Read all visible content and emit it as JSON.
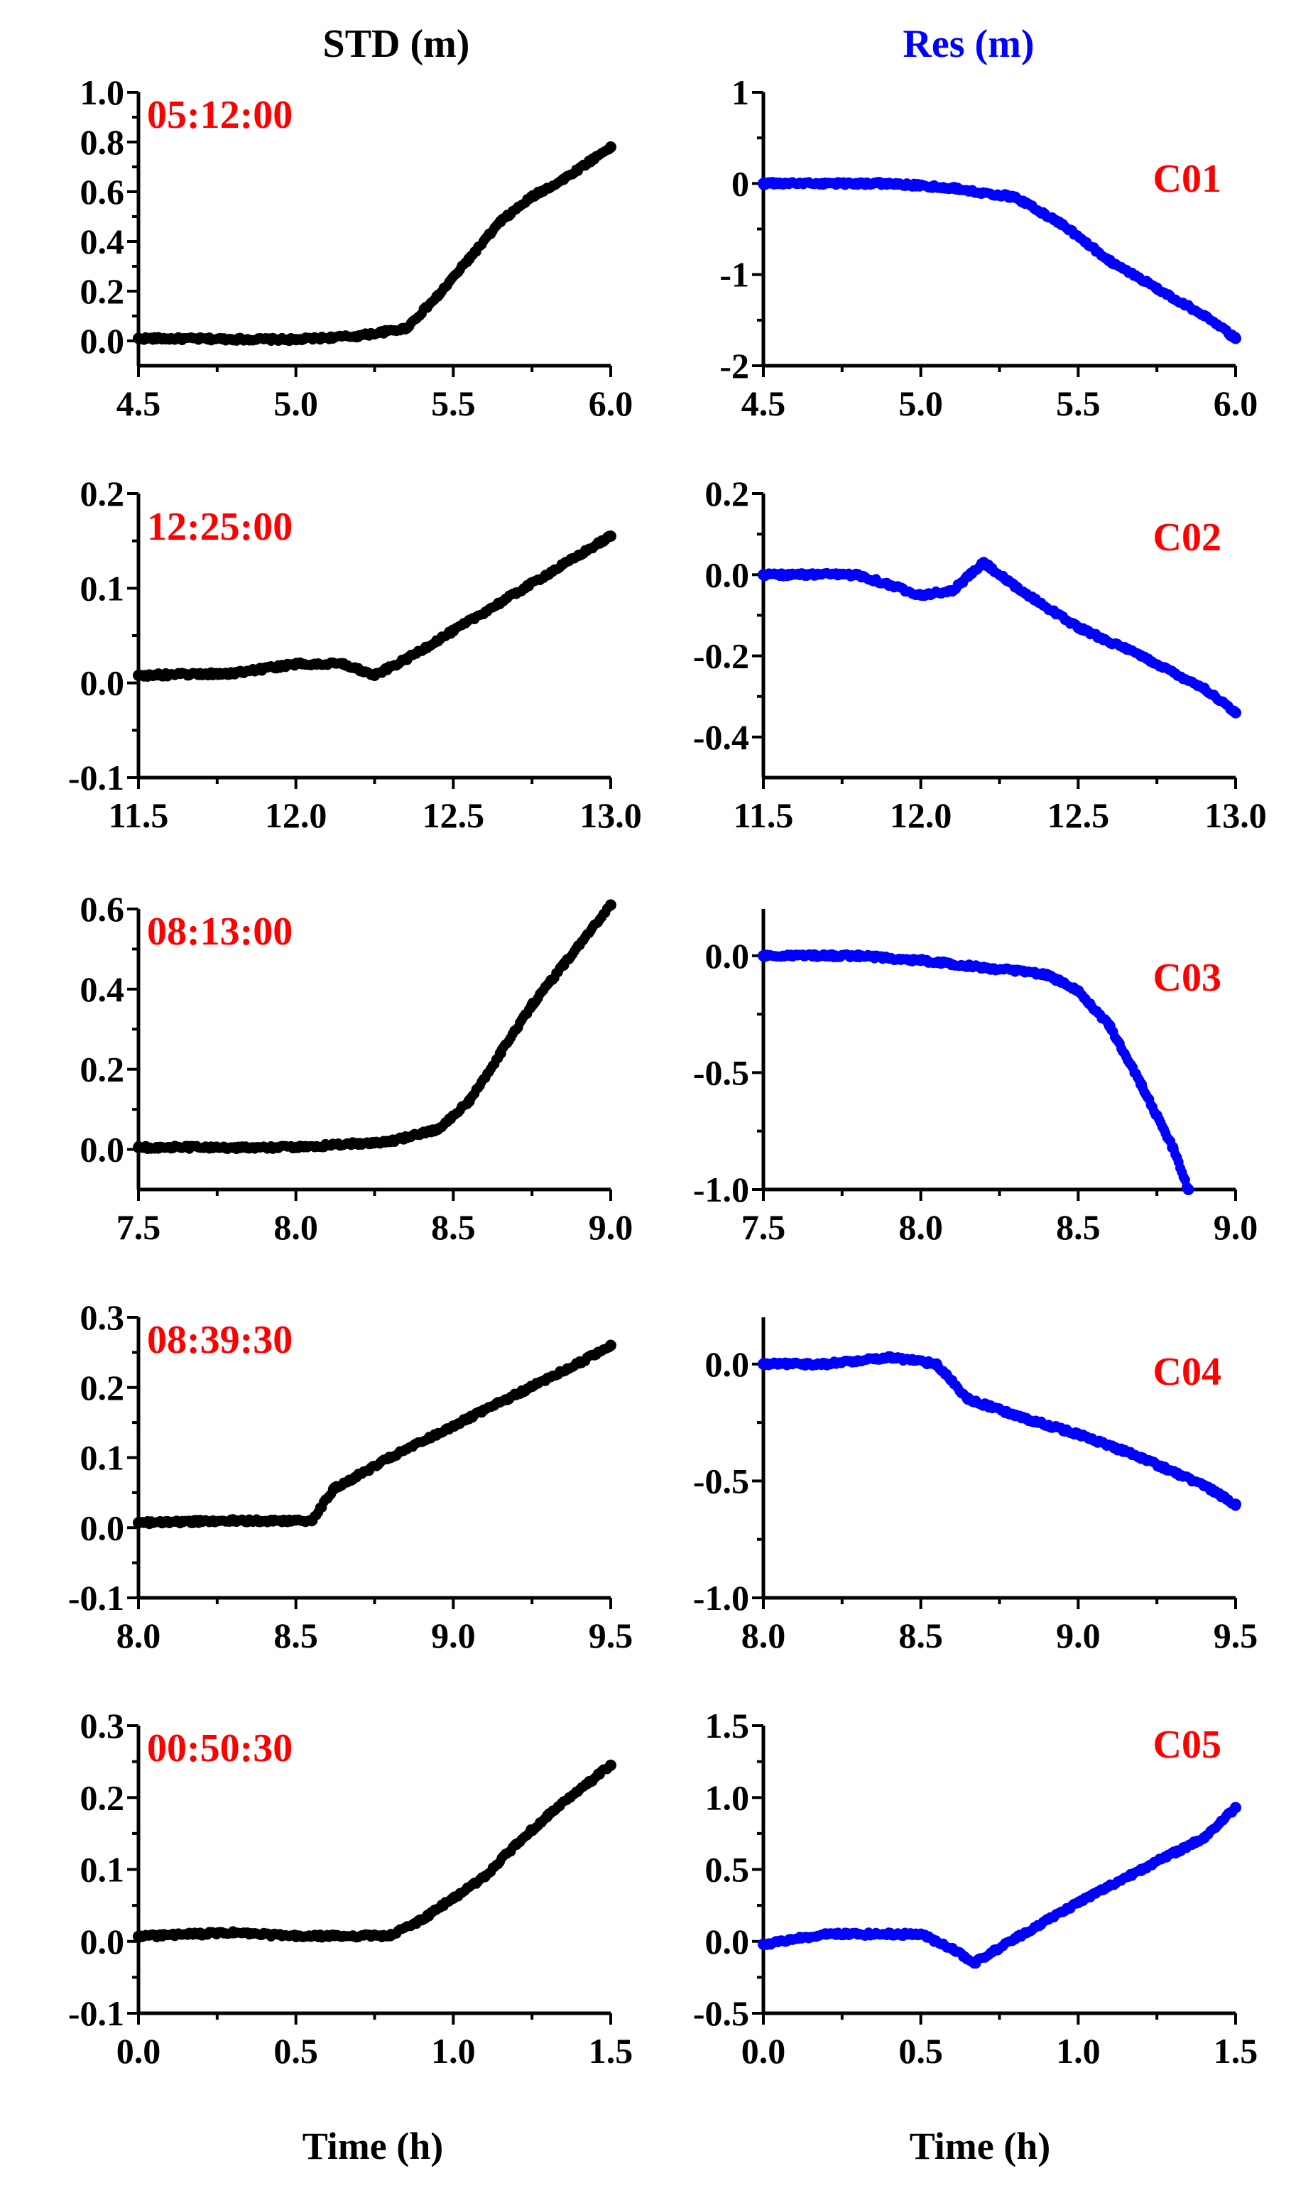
{
  "header": {
    "left_title": "STD (m)",
    "right_title": "Res (m)"
  },
  "footer": {
    "left_xlabel": "Time (h)",
    "right_xlabel": "Time (h)"
  },
  "colors": {
    "std_series": "#000000",
    "res_series": "#0000ff",
    "annotation": "#ff0000",
    "left_title": "#000000",
    "right_title": "#0000ff"
  },
  "chart_data": [
    {
      "type": "scatter",
      "column": "STD",
      "row": 1,
      "annotation": "05:12:00",
      "ylabel": "STD (m)",
      "xlim": [
        4.5,
        6.0
      ],
      "ylim": [
        -0.1,
        1.0
      ],
      "xticks": [
        "4.5",
        "5.0",
        "5.5",
        "6.0"
      ],
      "yticks": [
        "0.0",
        "0.2",
        "0.4",
        "0.6",
        "0.8",
        "1.0"
      ],
      "series": [
        {
          "name": "STD",
          "x": [
            4.5,
            5.0,
            5.2,
            5.35,
            5.45,
            5.55,
            5.65,
            5.75,
            5.85,
            6.0
          ],
          "y": [
            0.01,
            0.005,
            0.02,
            0.05,
            0.18,
            0.33,
            0.48,
            0.58,
            0.65,
            0.78
          ]
        }
      ]
    },
    {
      "type": "scatter",
      "column": "Res",
      "row": 1,
      "annotation": "C01",
      "ylabel": "Res (m)",
      "xlim": [
        4.5,
        6.0
      ],
      "ylim": [
        -2,
        1
      ],
      "xticks": [
        "4.5",
        "5.0",
        "5.5",
        "6.0"
      ],
      "yticks": [
        "-2",
        "-1",
        "0",
        "1"
      ],
      "series": [
        {
          "name": "Res",
          "x": [
            4.5,
            4.9,
            5.1,
            5.3,
            5.45,
            5.6,
            5.75,
            5.9,
            6.0
          ],
          "y": [
            0.0,
            0.0,
            -0.05,
            -0.15,
            -0.45,
            -0.85,
            -1.15,
            -1.45,
            -1.7
          ]
        }
      ]
    },
    {
      "type": "scatter",
      "column": "STD",
      "row": 2,
      "annotation": "12:25:00",
      "ylabel": "STD (m)",
      "xlim": [
        11.5,
        13.0
      ],
      "ylim": [
        -0.1,
        0.2
      ],
      "xticks": [
        "11.5",
        "12.0",
        "12.5",
        "13.0"
      ],
      "yticks": [
        "-0.1",
        "0.0",
        "0.1",
        "0.2"
      ],
      "series": [
        {
          "name": "STD",
          "x": [
            11.5,
            11.8,
            12.0,
            12.15,
            12.25,
            12.35,
            12.5,
            12.7,
            12.9,
            13.0
          ],
          "y": [
            0.008,
            0.01,
            0.02,
            0.02,
            0.008,
            0.025,
            0.055,
            0.095,
            0.135,
            0.155
          ]
        }
      ]
    },
    {
      "type": "scatter",
      "column": "Res",
      "row": 2,
      "annotation": "C02",
      "ylabel": "Res (m)",
      "xlim": [
        11.5,
        13.0
      ],
      "ylim": [
        -0.5,
        0.2
      ],
      "xticks": [
        "11.5",
        "12.0",
        "12.5",
        "13.0"
      ],
      "yticks": [
        "-0.4",
        "-0.2",
        "0.0",
        "0.2"
      ],
      "series": [
        {
          "name": "Res",
          "x": [
            11.5,
            11.8,
            12.0,
            12.1,
            12.2,
            12.3,
            12.5,
            12.7,
            12.9,
            13.0
          ],
          "y": [
            0.0,
            0.0,
            -0.05,
            -0.04,
            0.03,
            -0.03,
            -0.13,
            -0.2,
            -0.28,
            -0.34
          ]
        }
      ]
    },
    {
      "type": "scatter",
      "column": "STD",
      "row": 3,
      "annotation": "08:13:00",
      "ylabel": "STD (m)",
      "xlim": [
        7.5,
        9.0
      ],
      "ylim": [
        -0.1,
        0.6
      ],
      "xticks": [
        "7.5",
        "8.0",
        "8.5",
        "9.0"
      ],
      "yticks": [
        "0.0",
        "0.2",
        "0.4",
        "0.6"
      ],
      "series": [
        {
          "name": "STD",
          "x": [
            7.5,
            8.0,
            8.3,
            8.45,
            8.55,
            8.65,
            8.75,
            8.85,
            9.0
          ],
          "y": [
            0.005,
            0.005,
            0.02,
            0.05,
            0.12,
            0.24,
            0.36,
            0.46,
            0.61
          ]
        }
      ]
    },
    {
      "type": "scatter",
      "column": "Res",
      "row": 3,
      "annotation": "C03",
      "ylabel": "Res (m)",
      "xlim": [
        7.5,
        9.0
      ],
      "ylim": [
        -1.0,
        0.2
      ],
      "xticks": [
        "7.5",
        "8.0",
        "8.5",
        "9.0"
      ],
      "yticks": [
        "-1.0",
        "-0.5",
        "0.0"
      ],
      "series": [
        {
          "name": "Res",
          "x": [
            7.5,
            7.8,
            8.0,
            8.2,
            8.4,
            8.5,
            8.6,
            8.7,
            8.8,
            8.85
          ],
          "y": [
            0.0,
            0.0,
            -0.02,
            -0.05,
            -0.08,
            -0.15,
            -0.3,
            -0.55,
            -0.82,
            -1.0
          ]
        }
      ]
    },
    {
      "type": "scatter",
      "column": "STD",
      "row": 4,
      "annotation": "08:39:30",
      "ylabel": "STD (m)",
      "xlim": [
        8.0,
        9.5
      ],
      "ylim": [
        -0.1,
        0.3
      ],
      "xticks": [
        "8.0",
        "8.5",
        "9.0",
        "9.5"
      ],
      "yticks": [
        "-0.1",
        "0.0",
        "0.1",
        "0.2",
        "0.3"
      ],
      "series": [
        {
          "name": "STD",
          "x": [
            8.0,
            8.3,
            8.55,
            8.62,
            8.8,
            9.0,
            9.2,
            9.4,
            9.5
          ],
          "y": [
            0.007,
            0.01,
            0.01,
            0.055,
            0.1,
            0.145,
            0.19,
            0.235,
            0.26
          ]
        }
      ]
    },
    {
      "type": "scatter",
      "column": "Res",
      "row": 4,
      "annotation": "C04",
      "ylabel": "Res (m)",
      "xlim": [
        8.0,
        9.5
      ],
      "ylim": [
        -1.0,
        0.2
      ],
      "xticks": [
        "8.0",
        "8.5",
        "9.0",
        "9.5"
      ],
      "yticks": [
        "-1.0",
        "-0.5",
        "0.0"
      ],
      "series": [
        {
          "name": "Res",
          "x": [
            8.0,
            8.2,
            8.4,
            8.55,
            8.65,
            8.8,
            9.0,
            9.2,
            9.4,
            9.5
          ],
          "y": [
            0.0,
            0.0,
            0.03,
            0.0,
            -0.15,
            -0.22,
            -0.3,
            -0.4,
            -0.52,
            -0.6
          ]
        }
      ]
    },
    {
      "type": "scatter",
      "column": "STD",
      "row": 5,
      "annotation": "00:50:30",
      "ylabel": "STD (m)",
      "xlim": [
        0.0,
        1.5
      ],
      "ylim": [
        -0.1,
        0.3
      ],
      "xticks": [
        "0.0",
        "0.5",
        "1.0",
        "1.5"
      ],
      "yticks": [
        "-0.1",
        "0.0",
        "0.1",
        "0.2",
        "0.3"
      ],
      "series": [
        {
          "name": "STD",
          "x": [
            0.0,
            0.3,
            0.5,
            0.8,
            0.9,
            1.0,
            1.1,
            1.2,
            1.3,
            1.5
          ],
          "y": [
            0.007,
            0.012,
            0.007,
            0.008,
            0.03,
            0.06,
            0.09,
            0.135,
            0.175,
            0.245
          ]
        }
      ]
    },
    {
      "type": "scatter",
      "column": "Res",
      "row": 5,
      "annotation": "C05",
      "ylabel": "Res (m)",
      "xlim": [
        0.0,
        1.5
      ],
      "ylim": [
        -0.5,
        1.5
      ],
      "xticks": [
        "0.0",
        "0.5",
        "1.0",
        "1.5"
      ],
      "yticks": [
        "-0.5",
        "0.0",
        "0.5",
        "1.0",
        "1.5"
      ],
      "series": [
        {
          "name": "Res",
          "x": [
            0.0,
            0.2,
            0.5,
            0.6,
            0.67,
            0.8,
            1.0,
            1.2,
            1.4,
            1.5
          ],
          "y": [
            -0.02,
            0.05,
            0.05,
            -0.05,
            -0.15,
            0.02,
            0.27,
            0.5,
            0.72,
            0.93
          ]
        }
      ]
    }
  ]
}
